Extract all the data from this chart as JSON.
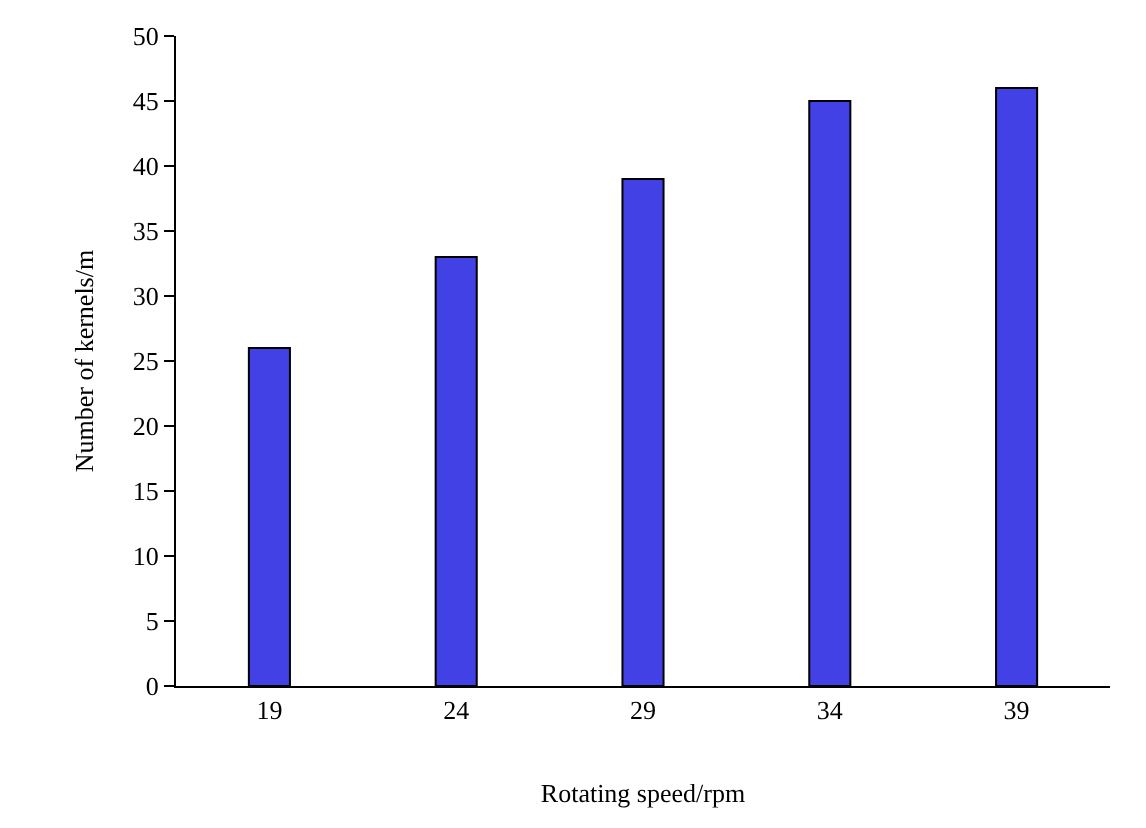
{
  "chart_data": {
    "type": "bar",
    "xlabel": "Rotating speed/rpm",
    "ylabel": "Number of kernels/m",
    "categories": [
      "19",
      "24",
      "29",
      "34",
      "39"
    ],
    "values": [
      26,
      33,
      39,
      45,
      46
    ],
    "color": "#4141e6",
    "ylim": [
      0,
      50
    ],
    "yticks": [
      0,
      5,
      10,
      15,
      20,
      25,
      30,
      35,
      40,
      45,
      50
    ]
  }
}
